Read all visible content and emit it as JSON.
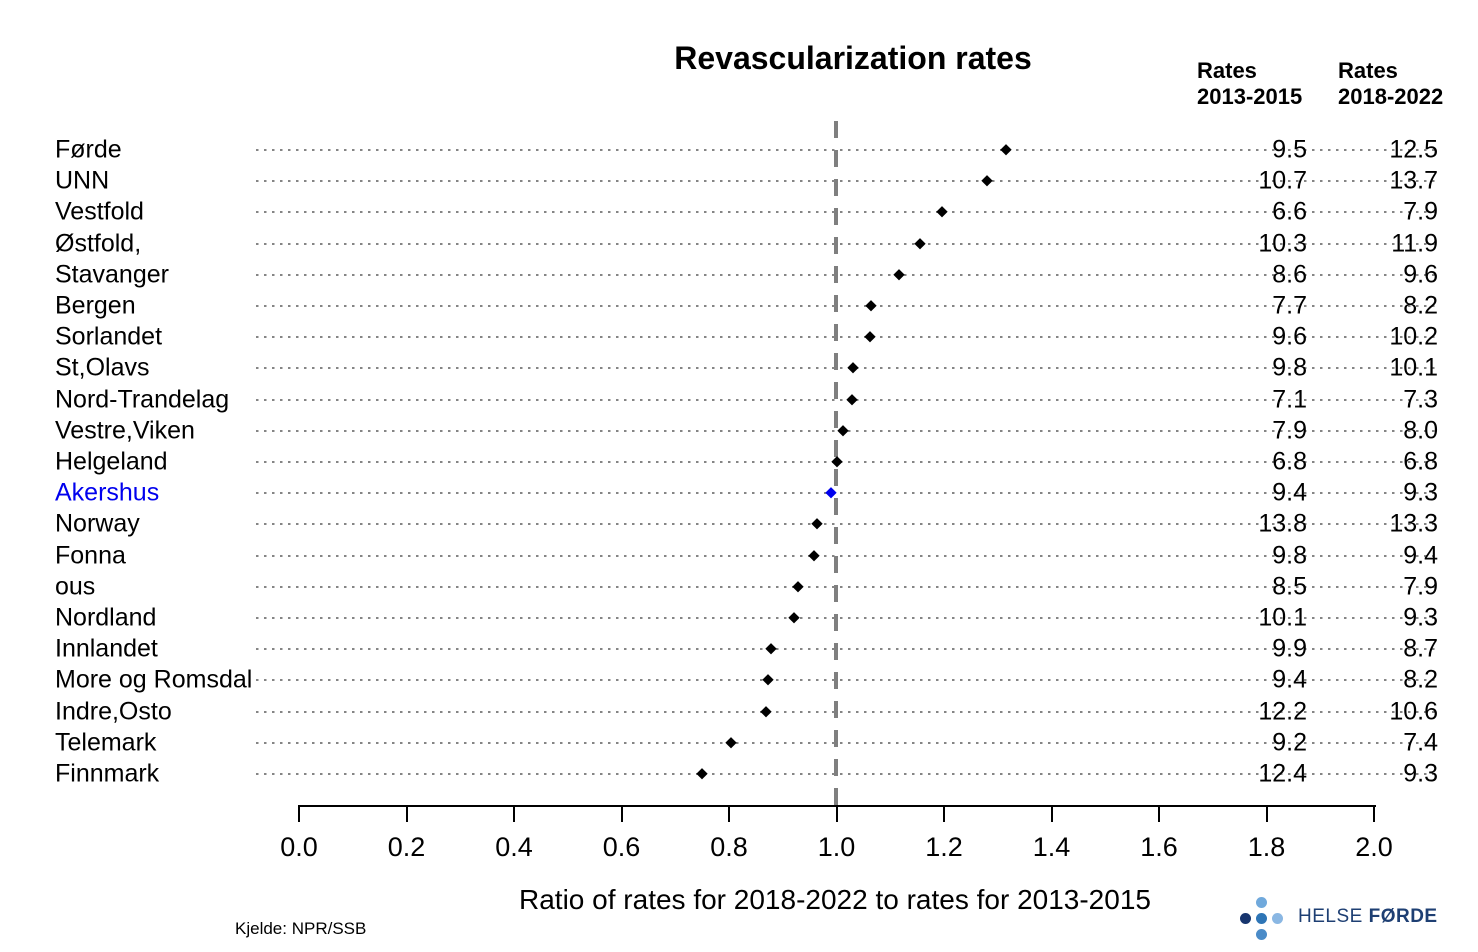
{
  "chart_data": {
    "type": "scatter",
    "title": "Revascularization rates",
    "xlabel": "Ratio of rates for 2018-2022 to rates for 2013-2015",
    "source": "Kjelde: NPR/SSB",
    "xlim": [
      0.0,
      2.0
    ],
    "xticks": [
      "0.0",
      "0.2",
      "0.4",
      "0.6",
      "0.8",
      "1.0",
      "1.2",
      "1.4",
      "1.6",
      "1.8",
      "2.0"
    ],
    "reference_line_x": 1.0,
    "legend_position": "none",
    "grid": "dotted horizontal leader line per row",
    "marker_shape": "diamond",
    "columns": {
      "col1_line1": "Rates",
      "col1_line2": "2013-2015",
      "col2_line1": "Rates",
      "col2_line2": "2018-2022"
    },
    "rows": [
      {
        "label": "Førde",
        "rate_2013_2015": "9.5",
        "rate_2018_2022": "12.5",
        "ratio": 1.316,
        "highlight": false
      },
      {
        "label": "UNN",
        "rate_2013_2015": "10.7",
        "rate_2018_2022": "13.7",
        "ratio": 1.28,
        "highlight": false
      },
      {
        "label": "Vestfold",
        "rate_2013_2015": "6.6",
        "rate_2018_2022": "7.9",
        "ratio": 1.197,
        "highlight": false
      },
      {
        "label": "Østfold,",
        "rate_2013_2015": "10.3",
        "rate_2018_2022": "11.9",
        "ratio": 1.155,
        "highlight": false
      },
      {
        "label": "Stavanger",
        "rate_2013_2015": "8.6",
        "rate_2018_2022": "9.6",
        "ratio": 1.116,
        "highlight": false
      },
      {
        "label": "Bergen",
        "rate_2013_2015": "7.7",
        "rate_2018_2022": "8.2",
        "ratio": 1.065,
        "highlight": false
      },
      {
        "label": "Sorlandet",
        "rate_2013_2015": "9.6",
        "rate_2018_2022": "10.2",
        "ratio": 1.063,
        "highlight": false
      },
      {
        "label": "St,Olavs",
        "rate_2013_2015": "9.8",
        "rate_2018_2022": "10.1",
        "ratio": 1.031,
        "highlight": false
      },
      {
        "label": "Nord-Trandelag",
        "rate_2013_2015": "7.1",
        "rate_2018_2022": "7.3",
        "ratio": 1.028,
        "highlight": false
      },
      {
        "label": "Vestre,Viken",
        "rate_2013_2015": "7.9",
        "rate_2018_2022": "8.0",
        "ratio": 1.013,
        "highlight": false
      },
      {
        "label": "Helgeland",
        "rate_2013_2015": "6.8",
        "rate_2018_2022": "6.8",
        "ratio": 1.0,
        "highlight": false
      },
      {
        "label": "Akershus",
        "rate_2013_2015": "9.4",
        "rate_2018_2022": "9.3",
        "ratio": 0.989,
        "highlight": true
      },
      {
        "label": "Norway",
        "rate_2013_2015": "13.8",
        "rate_2018_2022": "13.3",
        "ratio": 0.964,
        "highlight": false
      },
      {
        "label": "Fonna",
        "rate_2013_2015": "9.8",
        "rate_2018_2022": "9.4",
        "ratio": 0.959,
        "highlight": false
      },
      {
        "label": "ous",
        "rate_2013_2015": "8.5",
        "rate_2018_2022": "7.9",
        "ratio": 0.929,
        "highlight": false
      },
      {
        "label": "Nordland",
        "rate_2013_2015": "10.1",
        "rate_2018_2022": "9.3",
        "ratio": 0.921,
        "highlight": false
      },
      {
        "label": "Innlandet",
        "rate_2013_2015": "9.9",
        "rate_2018_2022": "8.7",
        "ratio": 0.879,
        "highlight": false
      },
      {
        "label": "More og Romsdal",
        "rate_2013_2015": "9.4",
        "rate_2018_2022": "8.2",
        "ratio": 0.872,
        "highlight": false
      },
      {
        "label": "Indre,Osto",
        "rate_2013_2015": "12.2",
        "rate_2018_2022": "10.6",
        "ratio": 0.869,
        "highlight": false
      },
      {
        "label": "Telemark",
        "rate_2013_2015": "9.2",
        "rate_2018_2022": "7.4",
        "ratio": 0.804,
        "highlight": false
      },
      {
        "label": "Finnmark",
        "rate_2013_2015": "12.4",
        "rate_2018_2022": "9.3",
        "ratio": 0.75,
        "highlight": false
      }
    ],
    "colors": {
      "marker": "#000000",
      "highlight": "#0000ee",
      "reference_line": "#7f7f7f",
      "leader_line": "#858585",
      "axis": "#000000"
    }
  },
  "logo": {
    "text_light": "HELSE",
    "text_bold": "FØRDE",
    "text_color": "#1e3f73",
    "dot_colors": {
      "left": "#17356e",
      "top": "#70a9dc",
      "center": "#2e75b6",
      "bottom": "#4a8bc8",
      "right": "#8ab7e3"
    }
  }
}
